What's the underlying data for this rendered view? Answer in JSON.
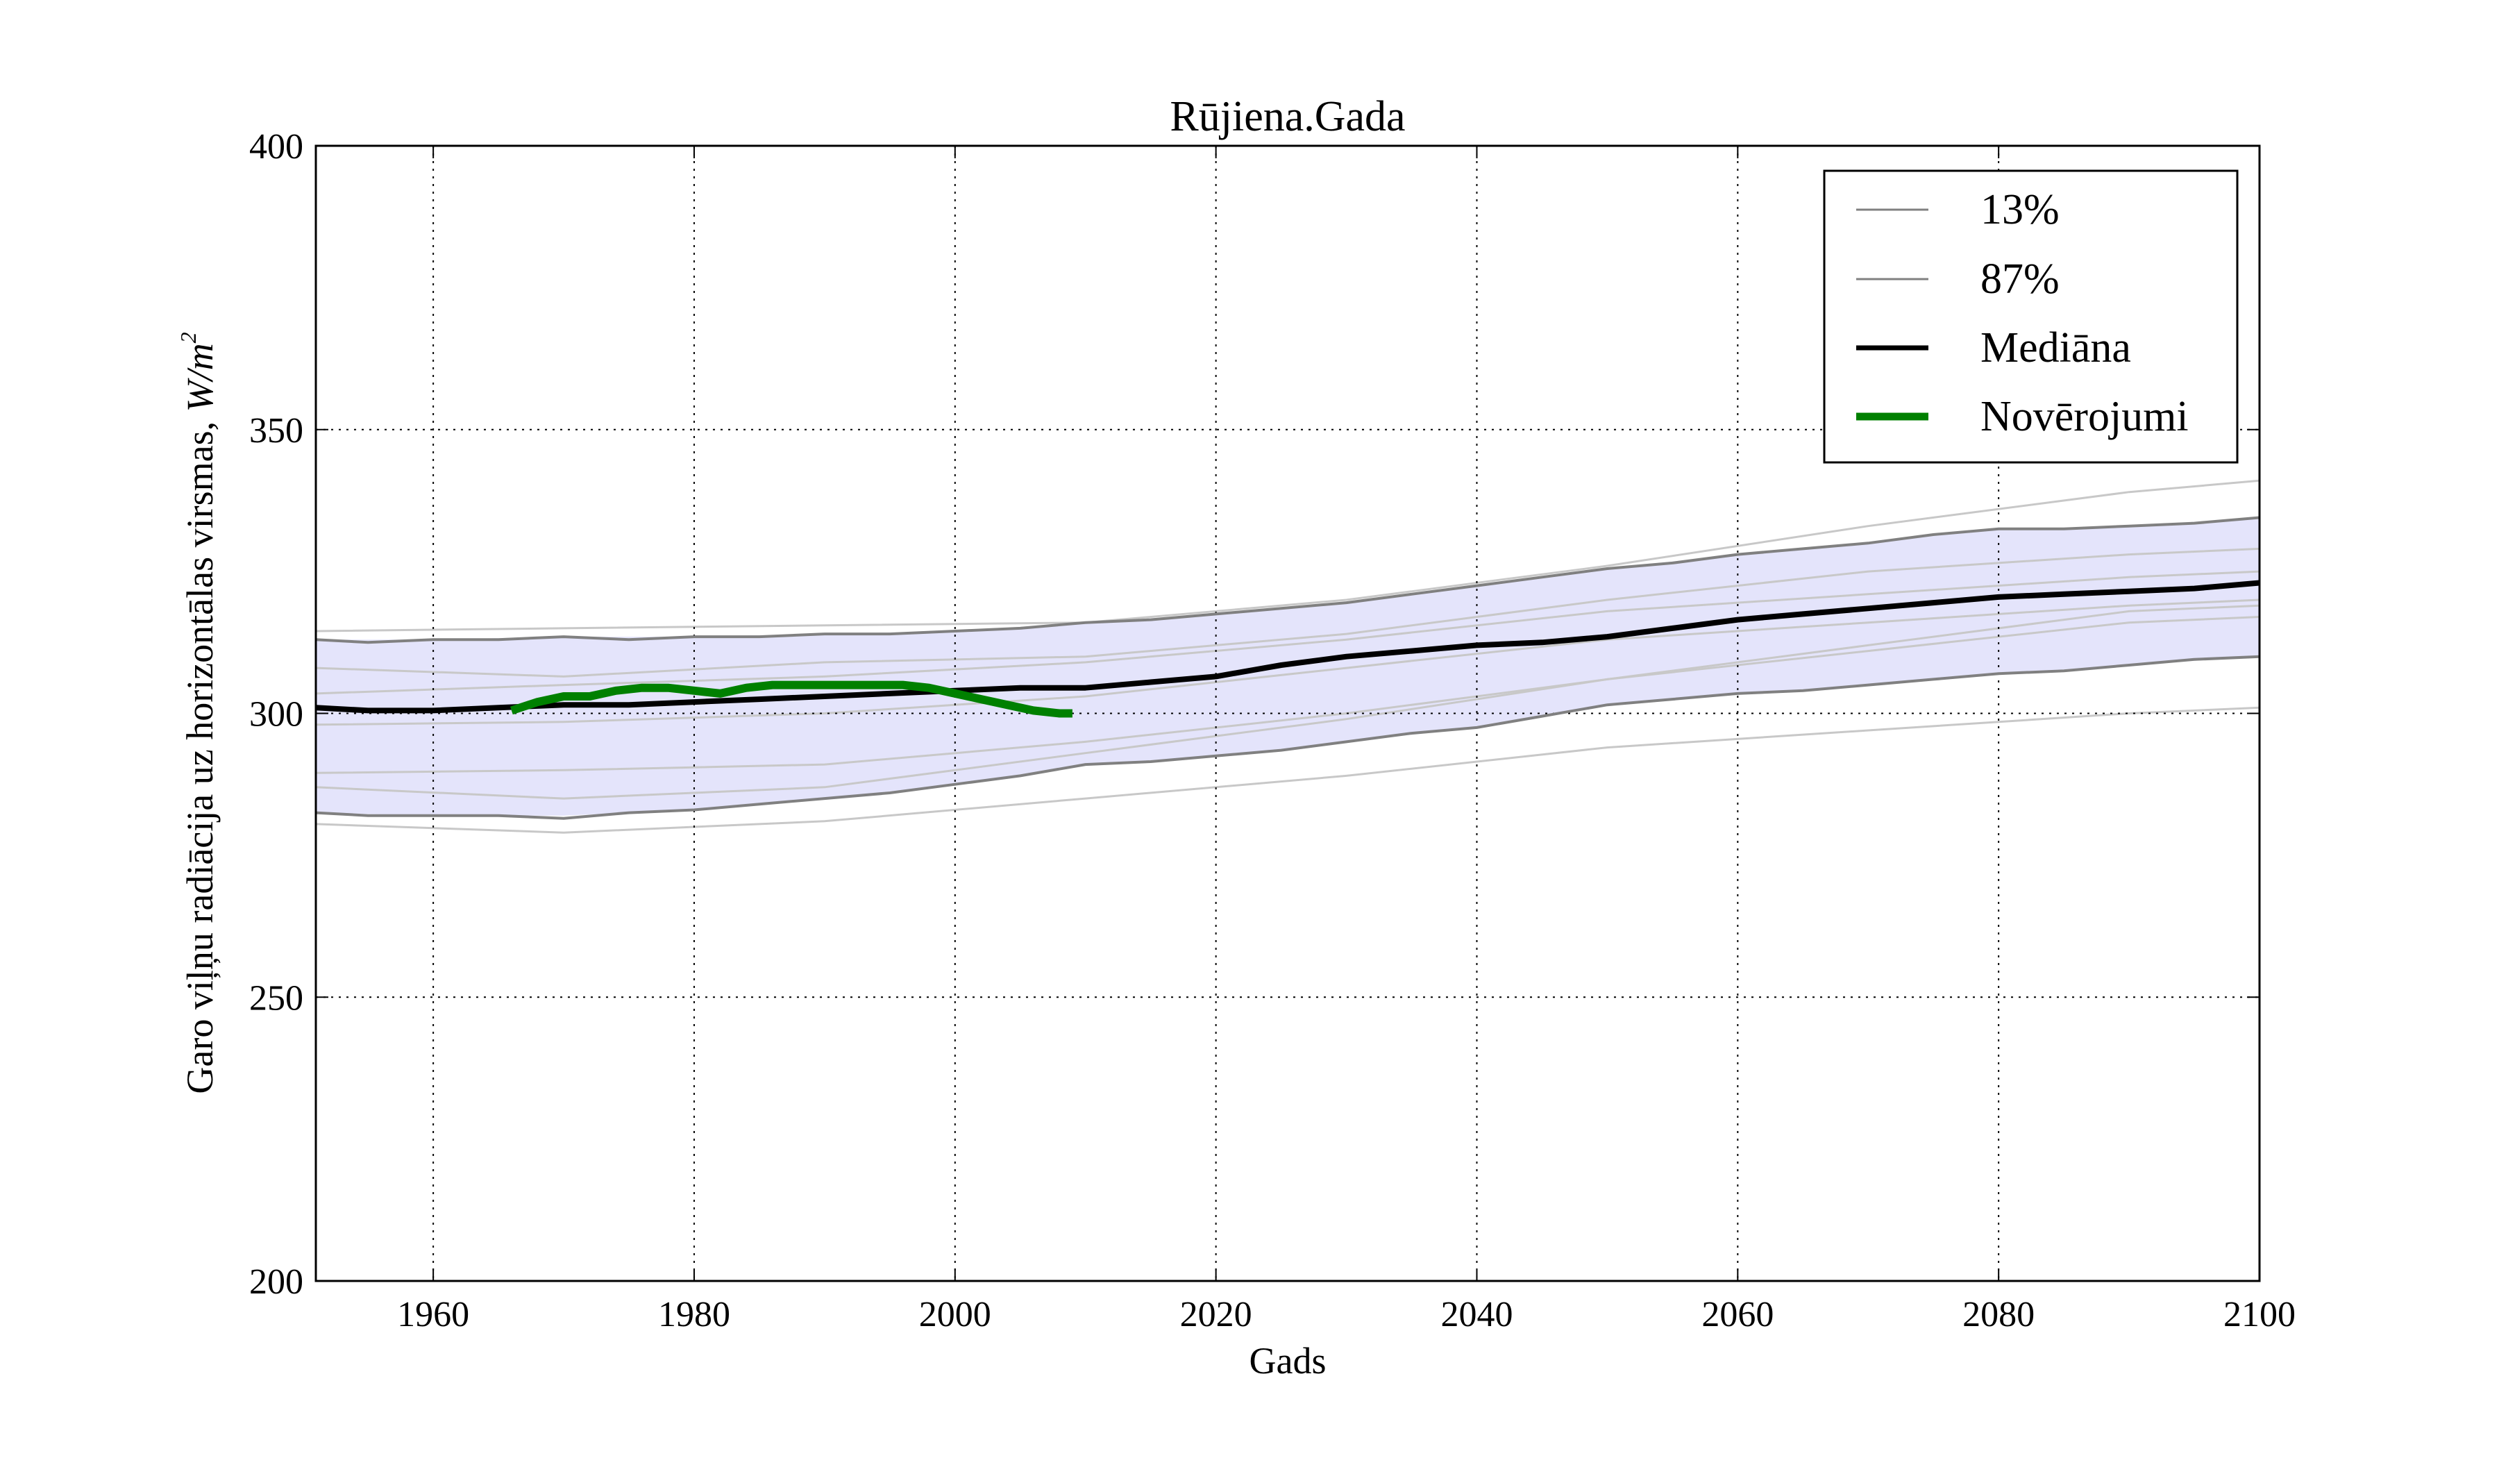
{
  "chart_data": {
    "type": "line",
    "title": "Rūjiena.Gada",
    "xlabel": "Gads",
    "ylabel": "Garo viļņu radiācija uz horizontālas virsmas, ",
    "ylabel_unit": "W/m",
    "ylabel_unit_sup": "2",
    "xlim": [
      1951,
      2100
    ],
    "ylim": [
      200,
      400
    ],
    "xticks": [
      "1960",
      "1980",
      "2000",
      "2020",
      "2040",
      "2060",
      "2080",
      "2100"
    ],
    "yticks": [
      "200",
      "250",
      "300",
      "350",
      "400"
    ],
    "grid": true,
    "legend_position": "top-right",
    "colors": {
      "band": "#e4e4fb",
      "percentile": "#808080",
      "median": "#000000",
      "observations": "#008000",
      "ensemble": "#c8c8c8"
    },
    "band": {
      "x": [
        1951,
        1960,
        1970,
        1980,
        1990,
        2000,
        2010,
        2020,
        2030,
        2040,
        2050,
        2060,
        2070,
        2080,
        2090,
        2100
      ],
      "lower": [
        282.5,
        282.0,
        282.0,
        283.0,
        285.0,
        287.5,
        291.0,
        292.5,
        295.0,
        297.5,
        301.5,
        303.5,
        305.0,
        307.0,
        308.5,
        310.0
      ],
      "upper": [
        313.0,
        313.0,
        313.5,
        313.5,
        314.0,
        314.5,
        316.0,
        317.5,
        319.5,
        322.5,
        325.5,
        328.0,
        330.0,
        332.5,
        333.0,
        334.5
      ]
    },
    "series": [
      {
        "name": "13%",
        "x": [
          1951,
          1955,
          1960,
          1965,
          1970,
          1975,
          1980,
          1985,
          1990,
          1995,
          2000,
          2005,
          2010,
          2015,
          2020,
          2025,
          2030,
          2035,
          2040,
          2045,
          2050,
          2055,
          2060,
          2065,
          2070,
          2075,
          2080,
          2085,
          2090,
          2095,
          2100
        ],
        "y": [
          282.5,
          282.0,
          282.0,
          282.0,
          281.5,
          282.5,
          283.0,
          284.0,
          285.0,
          286.0,
          287.5,
          289.0,
          291.0,
          291.5,
          292.5,
          293.5,
          295.0,
          296.5,
          297.5,
          299.5,
          301.5,
          302.5,
          303.5,
          304.0,
          305.0,
          306.0,
          307.0,
          307.5,
          308.5,
          309.5,
          310.0
        ]
      },
      {
        "name": "87%",
        "x": [
          1951,
          1955,
          1960,
          1965,
          1970,
          1975,
          1980,
          1985,
          1990,
          1995,
          2000,
          2005,
          2010,
          2015,
          2020,
          2025,
          2030,
          2035,
          2040,
          2045,
          2050,
          2055,
          2060,
          2065,
          2070,
          2075,
          2080,
          2085,
          2090,
          2095,
          2100
        ],
        "y": [
          313.0,
          312.5,
          313.0,
          313.0,
          313.5,
          313.0,
          313.5,
          313.5,
          314.0,
          314.0,
          314.5,
          315.0,
          316.0,
          316.5,
          317.5,
          318.5,
          319.5,
          321.0,
          322.5,
          324.0,
          325.5,
          326.5,
          328.0,
          329.0,
          330.0,
          331.5,
          332.5,
          332.5,
          333.0,
          333.5,
          334.5
        ]
      },
      {
        "name": "Mediāna",
        "x": [
          1951,
          1955,
          1960,
          1965,
          1970,
          1975,
          1980,
          1985,
          1990,
          1995,
          2000,
          2005,
          2010,
          2015,
          2020,
          2025,
          2030,
          2035,
          2040,
          2045,
          2050,
          2055,
          2060,
          2065,
          2070,
          2075,
          2080,
          2085,
          2090,
          2095,
          2100
        ],
        "y": [
          301.0,
          300.5,
          300.5,
          301.0,
          301.5,
          301.5,
          302.0,
          302.5,
          303.0,
          303.5,
          304.0,
          304.5,
          304.5,
          305.5,
          306.5,
          308.5,
          310.0,
          311.0,
          312.0,
          312.5,
          313.5,
          315.0,
          316.5,
          317.5,
          318.5,
          319.5,
          320.5,
          321.0,
          321.5,
          322.0,
          323.0
        ]
      },
      {
        "name": "Novērojumi",
        "x": [
          1966,
          1968,
          1970,
          1972,
          1974,
          1976,
          1978,
          1980,
          1982,
          1984,
          1986,
          1988,
          1990,
          1992,
          1994,
          1996,
          1998,
          2000,
          2002,
          2004,
          2006,
          2008,
          2009
        ],
        "y": [
          300.5,
          302.0,
          303.0,
          303.0,
          304.0,
          304.5,
          304.5,
          304.0,
          303.5,
          304.5,
          305.0,
          305.0,
          305.0,
          305.0,
          305.0,
          305.0,
          304.5,
          303.5,
          302.5,
          301.5,
          300.5,
          300.0,
          300.0
        ]
      }
    ],
    "ensemble_members": [
      {
        "x": [
          1951,
          1970,
          1990,
          2010,
          2030,
          2050,
          2070,
          2090,
          2100
        ],
        "y": [
          314.5,
          315.0,
          315.5,
          316.0,
          320.0,
          326.0,
          333.0,
          339.0,
          341.0
        ]
      },
      {
        "x": [
          1951,
          1970,
          1990,
          2010,
          2030,
          2050,
          2070,
          2090,
          2100
        ],
        "y": [
          280.5,
          279.0,
          281.0,
          285.0,
          289.0,
          294.0,
          297.0,
          300.0,
          301.0
        ]
      },
      {
        "x": [
          1951,
          1970,
          1990,
          2010,
          2030,
          2050,
          2070,
          2090,
          2100
        ],
        "y": [
          308.0,
          306.5,
          309.0,
          310.0,
          314.0,
          320.0,
          325.0,
          328.0,
          329.0
        ]
      },
      {
        "x": [
          1951,
          1970,
          1990,
          2010,
          2030,
          2050,
          2070,
          2090,
          2100
        ],
        "y": [
          289.5,
          290.0,
          291.0,
          295.0,
          300.0,
          306.0,
          311.0,
          316.0,
          317.0
        ]
      },
      {
        "x": [
          1951,
          1970,
          1990,
          2010,
          2030,
          2050,
          2070,
          2090,
          2100
        ],
        "y": [
          303.5,
          305.0,
          306.5,
          309.0,
          313.0,
          318.0,
          321.0,
          324.0,
          325.0
        ]
      },
      {
        "x": [
          1951,
          1970,
          1990,
          2010,
          2030,
          2050,
          2070,
          2090,
          2100
        ],
        "y": [
          287.0,
          285.0,
          287.0,
          293.0,
          299.0,
          306.0,
          312.0,
          318.0,
          319.0
        ]
      },
      {
        "x": [
          1951,
          1970,
          1990,
          2010,
          2030,
          2050,
          2070,
          2090,
          2100
        ],
        "y": [
          298.0,
          298.5,
          300.0,
          303.0,
          308.0,
          313.0,
          316.0,
          319.0,
          320.0
        ]
      }
    ]
  }
}
